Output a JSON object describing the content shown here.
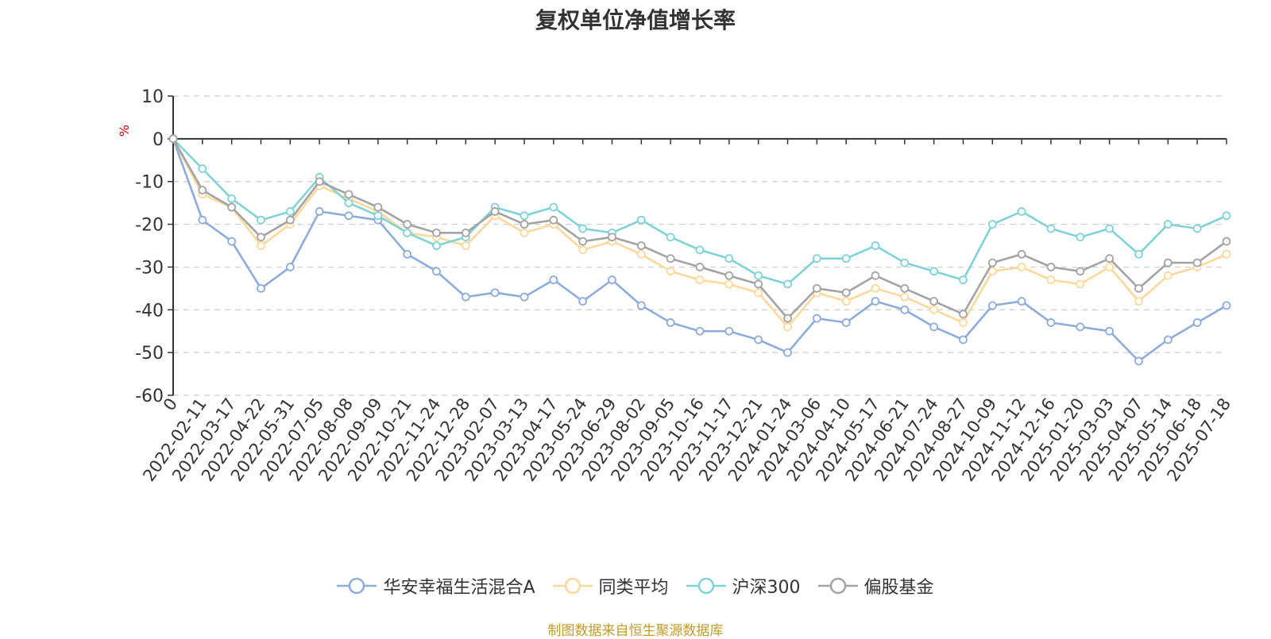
{
  "chart_data": {
    "type": "line",
    "title": "复权单位净值增长率",
    "ylabel": "%",
    "xlabel": "",
    "ylim": [
      -60,
      10
    ],
    "yticks": [
      10,
      0,
      -10,
      -20,
      -30,
      -40,
      -50,
      -60
    ],
    "grid": true,
    "legend_position": "bottom",
    "categories": [
      "0",
      "2022-02-11",
      "2022-03-17",
      "2022-04-22",
      "2022-05-31",
      "2022-07-05",
      "2022-08-08",
      "2022-09-09",
      "2022-10-21",
      "2022-11-24",
      "2022-12-28",
      "2023-02-07",
      "2023-03-13",
      "2023-04-17",
      "2023-05-24",
      "2023-06-29",
      "2023-08-02",
      "2023-09-05",
      "2023-10-16",
      "2023-11-17",
      "2023-12-21",
      "2024-01-24",
      "2024-03-06",
      "2024-04-10",
      "2024-05-17",
      "2024-06-21",
      "2024-07-24",
      "2024-08-27",
      "2024-10-09",
      "2024-11-12",
      "2024-12-16",
      "2025-01-20",
      "2025-03-03",
      "2025-04-07",
      "2025-05-14",
      "2025-06-18",
      "2025-07-18"
    ],
    "series": [
      {
        "name": "华安幸福生活混合A",
        "color": "#8dacdb",
        "values": [
          0,
          -19,
          -24,
          -35,
          -30,
          -17,
          -18,
          -19,
          -27,
          -31,
          -37,
          -36,
          -37,
          -33,
          -38,
          -33,
          -39,
          -43,
          -45,
          -45,
          -47,
          -50,
          -42,
          -43,
          -38,
          -40,
          -44,
          -47,
          -39,
          -38,
          -43,
          -44,
          -45,
          -52,
          -47,
          -43,
          -39
        ]
      },
      {
        "name": "同类平均",
        "color": "#fdd89a",
        "values": [
          0,
          -13,
          -16,
          -25,
          -20,
          -11,
          -14,
          -17,
          -22,
          -23,
          -25,
          -18,
          -22,
          -20,
          -26,
          -24,
          -27,
          -31,
          -33,
          -34,
          -36,
          -44,
          -36,
          -38,
          -35,
          -37,
          -40,
          -43,
          -31,
          -30,
          -33,
          -34,
          -30,
          -38,
          -32,
          -30,
          -27
        ]
      },
      {
        "name": "沪深300",
        "color": "#7fd3d6",
        "values": [
          0,
          -7,
          -14,
          -19,
          -17,
          -9,
          -15,
          -18,
          -22,
          -25,
          -23,
          -16,
          -18,
          -16,
          -21,
          -22,
          -19,
          -23,
          -26,
          -28,
          -32,
          -34,
          -28,
          -28,
          -25,
          -29,
          -31,
          -33,
          -20,
          -17,
          -21,
          -23,
          -21,
          -27,
          -20,
          -21,
          -18
        ]
      },
      {
        "name": "偏股基金",
        "color": "#a3a3a3",
        "values": [
          0,
          -12,
          -16,
          -23,
          -19,
          -10,
          -13,
          -16,
          -20,
          -22,
          -22,
          -17,
          -20,
          -19,
          -24,
          -23,
          -25,
          -28,
          -30,
          -32,
          -34,
          -42,
          -35,
          -36,
          -32,
          -35,
          -38,
          -41,
          -29,
          -27,
          -30,
          -31,
          -28,
          -35,
          -29,
          -29,
          -24
        ]
      }
    ]
  },
  "source_note": "制图数据来自恒生聚源数据库"
}
